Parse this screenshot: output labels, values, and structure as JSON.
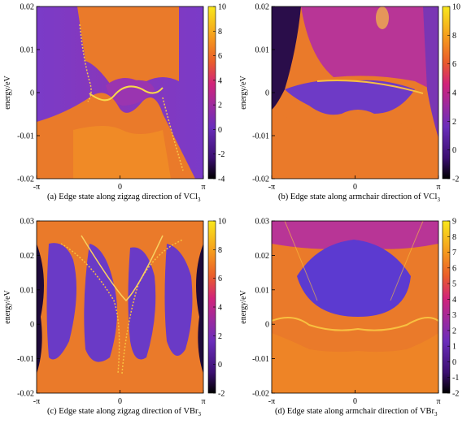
{
  "figure": {
    "panels": [
      {
        "id": "a",
        "caption_main": "(a) Edge state along zigzag direction of VCl",
        "caption_sub": "3",
        "ylabel": "energy/eV",
        "yticks": [
          "0.02",
          "0.01",
          "0",
          "-0.01",
          "-0.02"
        ],
        "xticks": [
          "-π",
          "0",
          "π"
        ],
        "cbar_ticks": [
          "10",
          "8",
          "6",
          "4",
          "2",
          "0",
          "-2",
          "-4"
        ]
      },
      {
        "id": "b",
        "caption_main": "(b) Edge state along armchair direction of VCl",
        "caption_sub": "3",
        "ylabel": "energy/eV",
        "yticks": [
          "0.02",
          "0.01",
          "0",
          "-0.01",
          "-0.02"
        ],
        "xticks": [
          "-π",
          "0",
          "π"
        ],
        "cbar_ticks": [
          "10",
          "8",
          "6",
          "4",
          "2",
          "0",
          "-2"
        ]
      },
      {
        "id": "c",
        "caption_main": "(c) Edge state along zigzag direction of VBr",
        "caption_sub": "3",
        "ylabel": "energy/eV",
        "yticks": [
          "0.03",
          "0.02",
          "0.01",
          "0",
          "-0.01",
          "-0.02"
        ],
        "xticks": [
          "-π",
          "0",
          "π"
        ],
        "cbar_ticks": [
          "10",
          "8",
          "6",
          "4",
          "2",
          "0",
          "-2"
        ]
      },
      {
        "id": "d",
        "caption_main": "(d) Edge state along armchair direction of VBr",
        "caption_sub": "3",
        "ylabel": "energy/eV",
        "yticks": [
          "0.03",
          "0.02",
          "0.01",
          "0",
          "-0.01",
          "-0.02"
        ],
        "xticks": [
          "-π",
          "0",
          "π"
        ],
        "cbar_ticks": [
          "9",
          "8",
          "7",
          "6",
          "5",
          "4",
          "3",
          "2",
          "1",
          "0",
          "-1",
          "-2"
        ]
      }
    ],
    "colormap": [
      "#000000",
      "#3b0f70",
      "#6a2dbb",
      "#8c2ba8",
      "#c2187a",
      "#e85a2a",
      "#f39c1e",
      "#f7e41c"
    ]
  }
}
